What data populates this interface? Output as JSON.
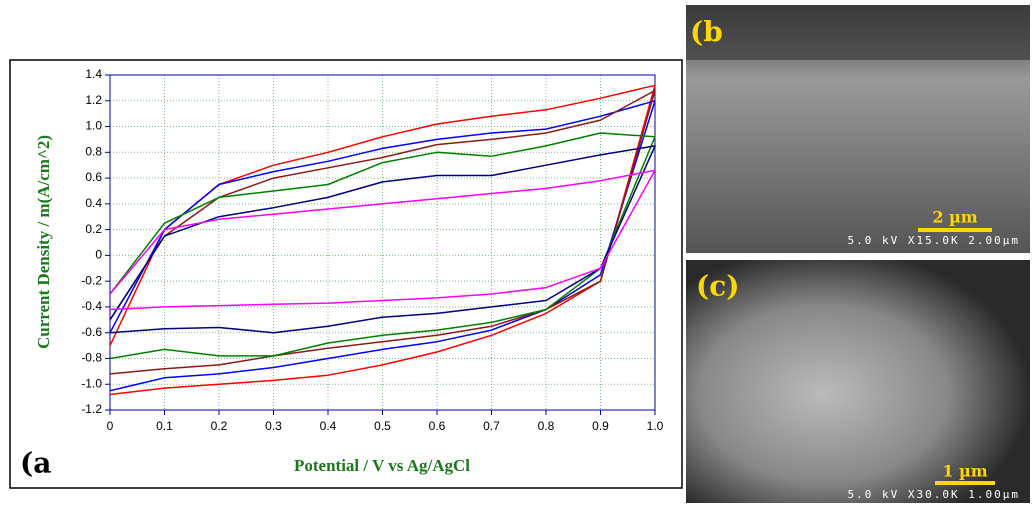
{
  "chart_data": {
    "type": "line",
    "panel_label": "(a",
    "xlabel": "Potential / V vs Ag/AgCl",
    "ylabel": "Current Density / m(A/cm^2)",
    "x": [
      0,
      0.1,
      0.2,
      0.3,
      0.4,
      0.5,
      0.6,
      0.7,
      0.8,
      0.9,
      1.0,
      0.9,
      0.8,
      0.7,
      0.6,
      0.5,
      0.4,
      0.3,
      0.2,
      0.1,
      0
    ],
    "series": [
      {
        "color": "#ff0000",
        "values": [
          -0.7,
          0.2,
          0.55,
          0.7,
          0.8,
          0.92,
          1.02,
          1.08,
          1.13,
          1.22,
          1.32,
          -0.2,
          -0.45,
          -0.62,
          -0.75,
          -0.85,
          -0.93,
          -0.97,
          -1.0,
          -1.03,
          -1.08
        ]
      },
      {
        "color": "#0000ff",
        "values": [
          -0.6,
          0.2,
          0.55,
          0.65,
          0.73,
          0.83,
          0.9,
          0.95,
          0.98,
          1.08,
          1.2,
          -0.15,
          -0.42,
          -0.58,
          -0.67,
          -0.73,
          -0.8,
          -0.87,
          -0.92,
          -0.95,
          -1.05
        ]
      },
      {
        "color": "#8b1a1a",
        "values": [
          -0.5,
          0.15,
          0.45,
          0.6,
          0.68,
          0.76,
          0.86,
          0.9,
          0.95,
          1.05,
          1.28,
          -0.2,
          -0.42,
          -0.55,
          -0.62,
          -0.67,
          -0.72,
          -0.78,
          -0.85,
          -0.88,
          -0.92
        ]
      },
      {
        "color": "#008000",
        "values": [
          -0.3,
          0.25,
          0.45,
          0.5,
          0.55,
          0.72,
          0.8,
          0.77,
          0.85,
          0.95,
          0.92,
          -0.1,
          -0.42,
          -0.52,
          -0.58,
          -0.62,
          -0.68,
          -0.78,
          -0.78,
          -0.73,
          -0.8
        ]
      },
      {
        "color": "#000080",
        "values": [
          -0.5,
          0.15,
          0.3,
          0.37,
          0.45,
          0.57,
          0.62,
          0.62,
          0.7,
          0.78,
          0.85,
          -0.1,
          -0.35,
          -0.4,
          -0.45,
          -0.48,
          -0.55,
          -0.6,
          -0.56,
          -0.57,
          -0.6
        ]
      },
      {
        "color": "#ff00ff",
        "values": [
          -0.3,
          0.2,
          0.28,
          0.32,
          0.36,
          0.4,
          0.44,
          0.48,
          0.52,
          0.58,
          0.66,
          -0.1,
          -0.25,
          -0.3,
          -0.33,
          -0.35,
          -0.37,
          -0.38,
          -0.39,
          -0.4,
          -0.42
        ]
      }
    ],
    "xlim": [
      0,
      1
    ],
    "xticks": [
      0,
      0.1,
      0.2,
      0.3,
      0.4,
      0.5,
      0.6,
      0.7,
      0.8,
      0.9,
      {
        "value": 1,
        "label": "1.0"
      }
    ],
    "ylim": [
      -1.2,
      1.4
    ],
    "yticks": [
      -1.2,
      {
        "value": -1,
        "label": "-1.0"
      },
      -0.8,
      -0.6,
      -0.4,
      -0.2,
      0,
      0.2,
      0.4,
      0.6,
      0.8,
      {
        "value": 1,
        "label": "1.0"
      },
      1.2,
      1.4
    ],
    "grid": true
  },
  "panels": [
    {
      "label": "(b",
      "scale_bar": "2 µm",
      "info": "5.0 kV X15.0K 2.00µm"
    },
    {
      "label": "(c)",
      "scale_bar": "1 µm",
      "info": "5.0 kV X30.0K 1.00µm"
    }
  ]
}
